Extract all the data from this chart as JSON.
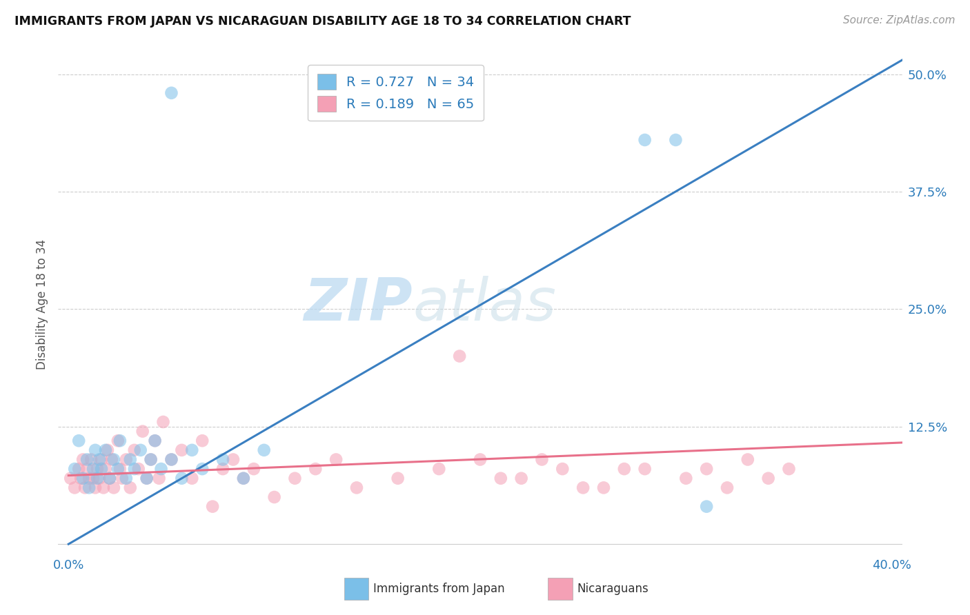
{
  "title": "IMMIGRANTS FROM JAPAN VS NICARAGUAN DISABILITY AGE 18 TO 34 CORRELATION CHART",
  "source": "Source: ZipAtlas.com",
  "ylabel": "Disability Age 18 to 34",
  "xlim": [
    -0.005,
    0.405
  ],
  "ylim": [
    -0.01,
    0.52
  ],
  "xticks": [
    0.0,
    0.1,
    0.2,
    0.3,
    0.4
  ],
  "xtick_labels": [
    "0.0%",
    "",
    "",
    "",
    "40.0%"
  ],
  "yticks": [
    0.0,
    0.125,
    0.25,
    0.375,
    0.5
  ],
  "ytick_labels": [
    "",
    "12.5%",
    "25.0%",
    "37.5%",
    "50.0%"
  ],
  "blue_R": 0.727,
  "blue_N": 34,
  "pink_R": 0.189,
  "pink_N": 65,
  "blue_color": "#7bbfe8",
  "pink_color": "#f4a0b5",
  "blue_line_color": "#3a7fc1",
  "pink_line_color": "#e8708a",
  "watermark_zip": "ZIP",
  "watermark_atlas": "atlas",
  "legend_label_blue": "Immigrants from Japan",
  "legend_label_pink": "Nicaraguans",
  "blue_scatter_x": [
    0.003,
    0.005,
    0.007,
    0.009,
    0.01,
    0.012,
    0.013,
    0.014,
    0.015,
    0.016,
    0.018,
    0.02,
    0.022,
    0.024,
    0.025,
    0.028,
    0.03,
    0.032,
    0.035,
    0.038,
    0.04,
    0.042,
    0.045,
    0.05,
    0.055,
    0.06,
    0.065,
    0.075,
    0.085,
    0.095,
    0.05,
    0.28,
    0.295,
    0.31
  ],
  "blue_scatter_y": [
    0.08,
    0.11,
    0.07,
    0.09,
    0.06,
    0.08,
    0.1,
    0.07,
    0.09,
    0.08,
    0.1,
    0.07,
    0.09,
    0.08,
    0.11,
    0.07,
    0.09,
    0.08,
    0.1,
    0.07,
    0.09,
    0.11,
    0.08,
    0.09,
    0.07,
    0.1,
    0.08,
    0.09,
    0.07,
    0.1,
    0.48,
    0.43,
    0.43,
    0.04
  ],
  "pink_scatter_x": [
    0.001,
    0.003,
    0.005,
    0.006,
    0.007,
    0.008,
    0.009,
    0.01,
    0.011,
    0.012,
    0.013,
    0.014,
    0.015,
    0.016,
    0.017,
    0.018,
    0.019,
    0.02,
    0.021,
    0.022,
    0.024,
    0.025,
    0.026,
    0.028,
    0.03,
    0.032,
    0.034,
    0.036,
    0.038,
    0.04,
    0.042,
    0.044,
    0.046,
    0.05,
    0.055,
    0.06,
    0.065,
    0.07,
    0.075,
    0.08,
    0.085,
    0.09,
    0.1,
    0.11,
    0.12,
    0.13,
    0.14,
    0.16,
    0.18,
    0.2,
    0.22,
    0.24,
    0.26,
    0.28,
    0.3,
    0.31,
    0.32,
    0.33,
    0.34,
    0.35,
    0.19,
    0.21,
    0.23,
    0.25,
    0.27
  ],
  "pink_scatter_y": [
    0.07,
    0.06,
    0.08,
    0.07,
    0.09,
    0.06,
    0.08,
    0.07,
    0.09,
    0.07,
    0.06,
    0.08,
    0.07,
    0.09,
    0.06,
    0.08,
    0.1,
    0.07,
    0.09,
    0.06,
    0.11,
    0.08,
    0.07,
    0.09,
    0.06,
    0.1,
    0.08,
    0.12,
    0.07,
    0.09,
    0.11,
    0.07,
    0.13,
    0.09,
    0.1,
    0.07,
    0.11,
    0.04,
    0.08,
    0.09,
    0.07,
    0.08,
    0.05,
    0.07,
    0.08,
    0.09,
    0.06,
    0.07,
    0.08,
    0.09,
    0.07,
    0.08,
    0.06,
    0.08,
    0.07,
    0.08,
    0.06,
    0.09,
    0.07,
    0.08,
    0.2,
    0.07,
    0.09,
    0.06,
    0.08
  ],
  "blue_line_x": [
    0.0,
    0.405
  ],
  "blue_line_y": [
    0.0,
    0.515
  ],
  "pink_line_x": [
    0.0,
    0.405
  ],
  "pink_line_y": [
    0.073,
    0.108
  ]
}
